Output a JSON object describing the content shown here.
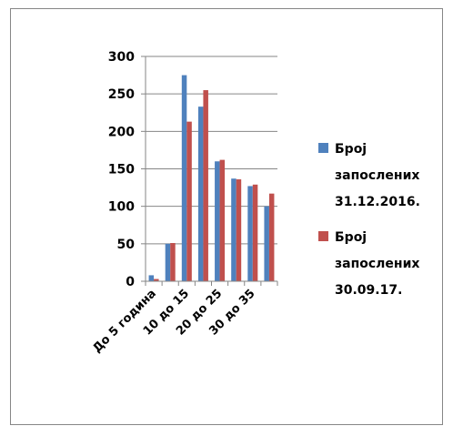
{
  "chart_data": {
    "type": "bar",
    "categories": [
      "До 5 година",
      "",
      "10 до 15",
      "",
      "20 до 25",
      "",
      "30 до 35",
      ""
    ],
    "series": [
      {
        "name": "Број запослених 31.12.2016.",
        "color": "#4f81bd",
        "values": [
          8,
          50,
          275,
          233,
          160,
          137,
          127,
          100
        ]
      },
      {
        "name": "Број запослених 30.09.17.",
        "color": "#c0504d",
        "values": [
          3,
          51,
          213,
          255,
          162,
          136,
          129,
          117
        ]
      }
    ],
    "ylim": [
      0,
      300
    ],
    "yticks": [
      "300",
      "250",
      "200",
      "150",
      "100",
      "50",
      "0"
    ],
    "grid": true,
    "legend_position": "right"
  }
}
